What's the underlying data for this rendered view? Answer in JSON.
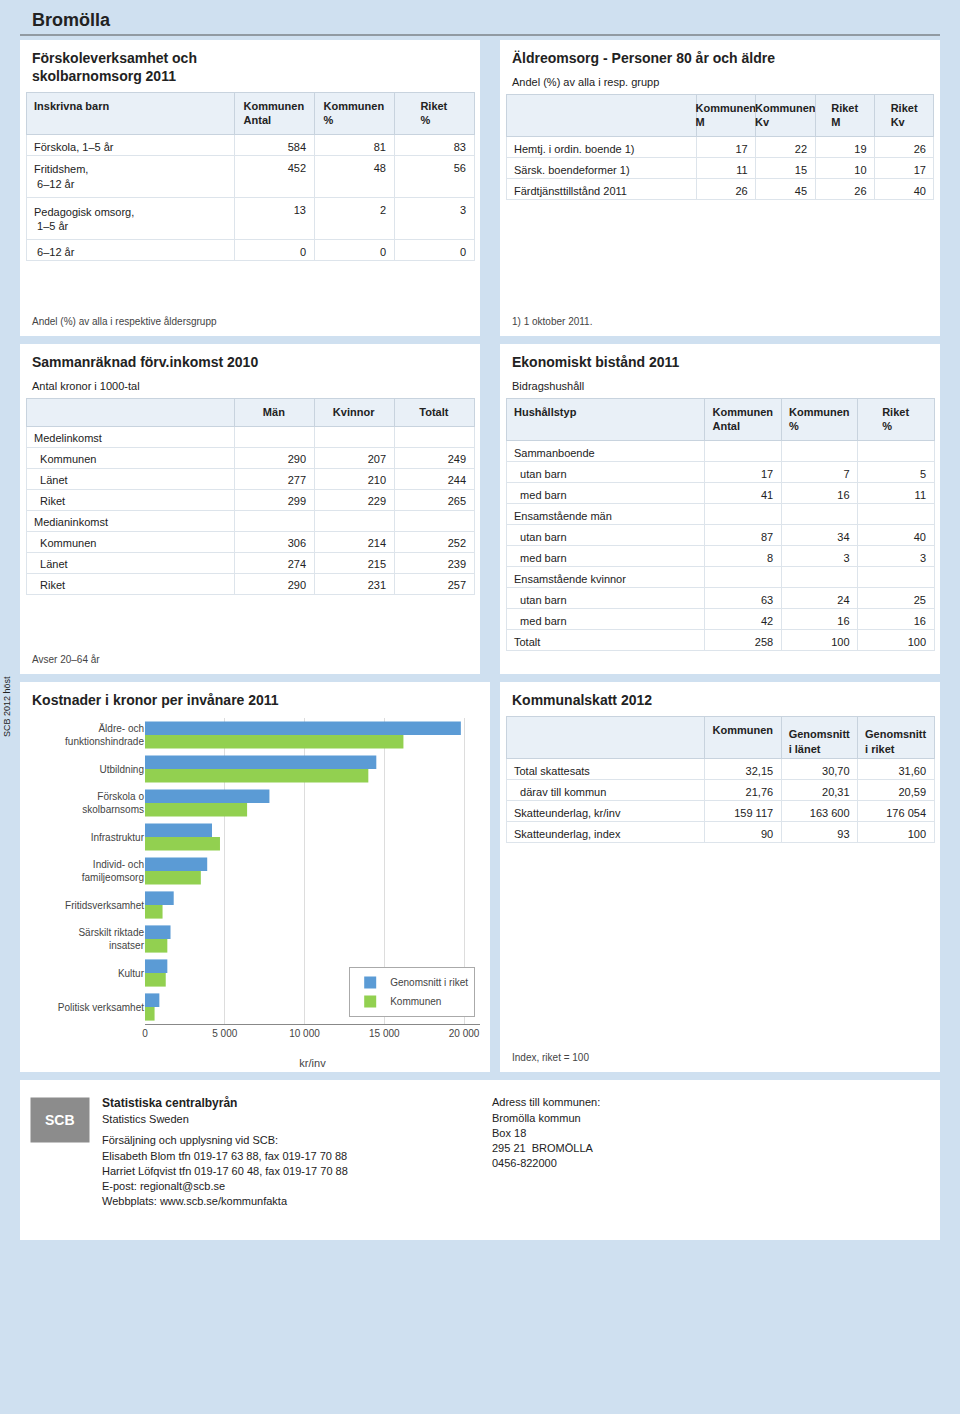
{
  "chart_data": [
    {
      "type": "heading",
      "title": "Bromölla",
      "annotations": [
        "SCB 2012 höst"
      ]
    },
    {
      "type": "table",
      "title": "Förskoleverksamhet och\nskolbarnomsorg 2011",
      "xlabel": "Inskrivna barn",
      "categories": [
        "Förskola, 1–5 år",
        "Fritidshem,\n 6–12 år",
        "Pedagogisk omsorg,\n 1–5 år",
        " 6–12 år"
      ],
      "series": [
        {
          "name": "Kommunen\nAntal",
          "values": [
            584,
            452,
            13,
            0
          ]
        },
        {
          "name": "Kommunen\n%",
          "values": [
            81,
            48,
            2,
            0
          ]
        },
        {
          "name": "Riket\n%",
          "values": [
            83,
            56,
            3,
            0
          ]
        }
      ],
      "annotations": [
        "Andel (%) av alla i respektive åldersgrupp"
      ]
    },
    {
      "type": "table",
      "title": "Äldreomsorg - Personer 80 år och äldre",
      "subtitle": "Andel (%) av alla i resp. grupp",
      "categories": [
        "Hemtj. i ordin. boende 1)",
        "Särsk. boendeformer 1)",
        "Färdtjänsttillstånd 2011"
      ],
      "series": [
        {
          "name": "Kommunen\nM",
          "values": [
            17,
            11,
            26
          ]
        },
        {
          "name": "Kommunen\nKv",
          "values": [
            22,
            15,
            45
          ]
        },
        {
          "name": "Riket\nM",
          "values": [
            19,
            10,
            26
          ]
        },
        {
          "name": "Riket\nKv",
          "values": [
            26,
            17,
            40
          ]
        }
      ],
      "annotations": [
        "1) 1 oktober 2011."
      ]
    },
    {
      "type": "table",
      "title": "Sammanräknad förv.inkomst 2010",
      "subtitle": "Antal kronor i 1000-tal",
      "categories": [
        "Medelinkomst",
        "  Kommunen",
        "  Länet",
        "  Riket",
        "Medianinkomst",
        "  Kommunen",
        "  Länet",
        "  Riket"
      ],
      "series": [
        {
          "name": "Män",
          "values": [
            null,
            290,
            277,
            299,
            null,
            306,
            274,
            290
          ]
        },
        {
          "name": "Kvinnor",
          "values": [
            null,
            207,
            210,
            229,
            null,
            214,
            215,
            231
          ]
        },
        {
          "name": "Totalt",
          "values": [
            null,
            249,
            244,
            265,
            null,
            252,
            239,
            257
          ]
        }
      ],
      "annotations": [
        "Avser 20–64 år"
      ]
    },
    {
      "type": "table",
      "title": "Ekonomiskt bistånd 2011",
      "subtitle": "Bidragshushåll",
      "xlabel": "Hushållstyp",
      "categories": [
        "Sammanboende",
        "  utan barn",
        "  med barn",
        "Ensamstående män",
        "  utan barn",
        "  med barn",
        "Ensamstående kvinnor",
        "  utan barn",
        "  med barn",
        "Totalt"
      ],
      "series": [
        {
          "name": "Kommunen\nAntal",
          "values": [
            null,
            17,
            41,
            null,
            87,
            8,
            null,
            63,
            42,
            258
          ]
        },
        {
          "name": "Kommunen\n%",
          "values": [
            null,
            7,
            16,
            null,
            34,
            3,
            null,
            24,
            16,
            100
          ]
        },
        {
          "name": "Riket\n%",
          "values": [
            null,
            5,
            11,
            null,
            40,
            3,
            null,
            25,
            16,
            100
          ]
        }
      ]
    },
    {
      "type": "bar",
      "title": "Kostnader i kronor per invånare 2011",
      "orientation": "horizontal",
      "categories": [
        "Äldre- och\nfunktionshindrade",
        "Utbildning",
        "Förskola o\nskolbarnsoms",
        "Infrastruktur",
        "Individ- och\nfamiljeomsorg",
        "Fritidsverksamhet",
        "Särskilt riktade\ninsatser",
        "Kultur",
        "Politisk verksamhet"
      ],
      "series": [
        {
          "name": "Genomsnitt i riket",
          "color": "#5b9bd5",
          "values": [
            19800,
            14500,
            7800,
            4200,
            3900,
            1800,
            1600,
            1400,
            900
          ]
        },
        {
          "name": "Kommunen",
          "color": "#92d050",
          "values": [
            16200,
            14000,
            6400,
            4700,
            3500,
            1100,
            1400,
            1300,
            600
          ]
        }
      ],
      "xlabel": "kr/inv",
      "xlim": [
        0,
        21000
      ],
      "xticks": [
        0,
        {
          "value": 5000,
          "label": "5 000"
        },
        {
          "value": 10000,
          "label": "10 000"
        },
        {
          "value": 15000,
          "label": "15 000"
        },
        {
          "value": 20000,
          "label": "20 000"
        }
      ],
      "grid": true,
      "legend": "lower right"
    },
    {
      "type": "table",
      "title": "Kommunalskatt 2012",
      "categories": [
        "Total skattesats",
        "  därav till kommun",
        "Skatteunderlag, kr/inv",
        "Skatteunderlag, index"
      ],
      "series": [
        {
          "name": "Kommunen",
          "values": [
            32.15,
            21.76,
            159117,
            90
          ],
          "value_labels": [
            "32,15",
            "21,76",
            "159 117",
            "90"
          ]
        },
        {
          "name": "Genomsnitt i länet",
          "values": [
            30.7,
            20.31,
            163600,
            93
          ],
          "value_labels": [
            "30,70",
            "20,31",
            "163 600",
            "93"
          ]
        },
        {
          "name": "Genomsnitt i riket",
          "values": [
            31.6,
            20.59,
            176054,
            100
          ],
          "value_labels": [
            "31,60",
            "20,59",
            "176 054",
            "100"
          ]
        }
      ],
      "annotations": [
        "Index, riket = 100"
      ]
    },
    {
      "type": "text",
      "title": "Statistiska centralbyrån",
      "subtitle": "Statistics Sweden",
      "annotations": [
        "SCB"
      ],
      "series": [
        {
          "name": "Försäljning och upplysning vid SCB:",
          "values": [
            "Elisabeth Blom tfn 019-17 63 88, fax 019-17 70 88",
            "Harriet Löfqvist tfn 019-17 60 48, fax 019-17 70 88",
            "E-post: regionalt@scb.se",
            "Webbplats: www.scb.se/kommunfakta"
          ]
        },
        {
          "name": "Adress till kommunen:",
          "values": [
            "Bromölla kommun",
            "Box 18",
            "295 21  BROMÖLLA",
            "0456-822000"
          ]
        }
      ]
    }
  ]
}
